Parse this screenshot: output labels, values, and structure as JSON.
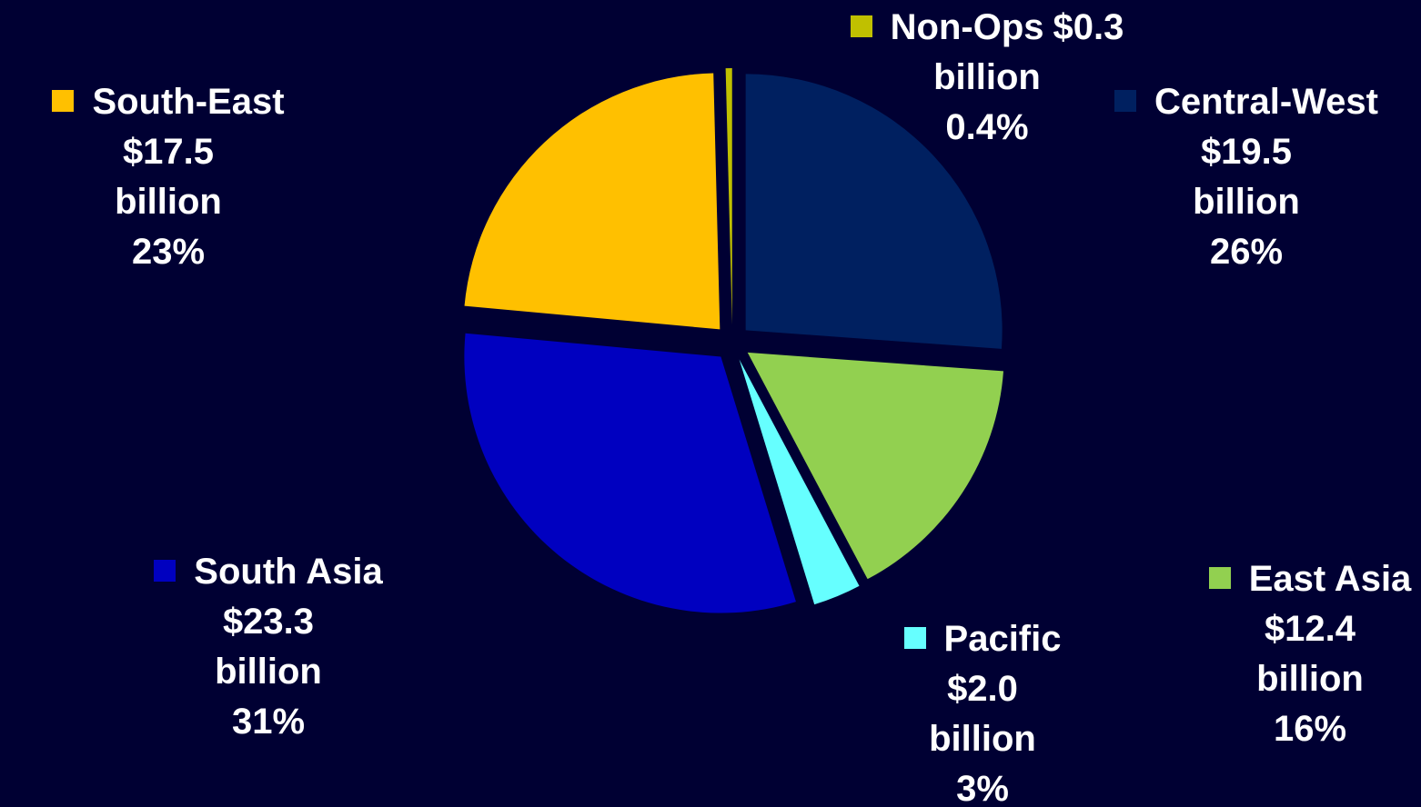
{
  "chart_data": {
    "type": "pie",
    "categories": [
      "Central-West",
      "East Asia",
      "Pacific",
      "South Asia",
      "South-East",
      "Non-Ops"
    ],
    "values": [
      26,
      16,
      3,
      31,
      23,
      0.4
    ],
    "value_labels": [
      "26%",
      "16%",
      "3%",
      "31%",
      "23%",
      "0.4%"
    ],
    "amount_labels": [
      "$19.5 billion",
      "$12.4 billion",
      "$2.0 billion",
      "$23.3 billion",
      "$17.5 billion",
      "$0.3 billion"
    ],
    "colors": [
      "#002060",
      "#92d050",
      "#66ffff",
      "#0000c0",
      "#ffc000",
      "#c0c000"
    ]
  }
}
